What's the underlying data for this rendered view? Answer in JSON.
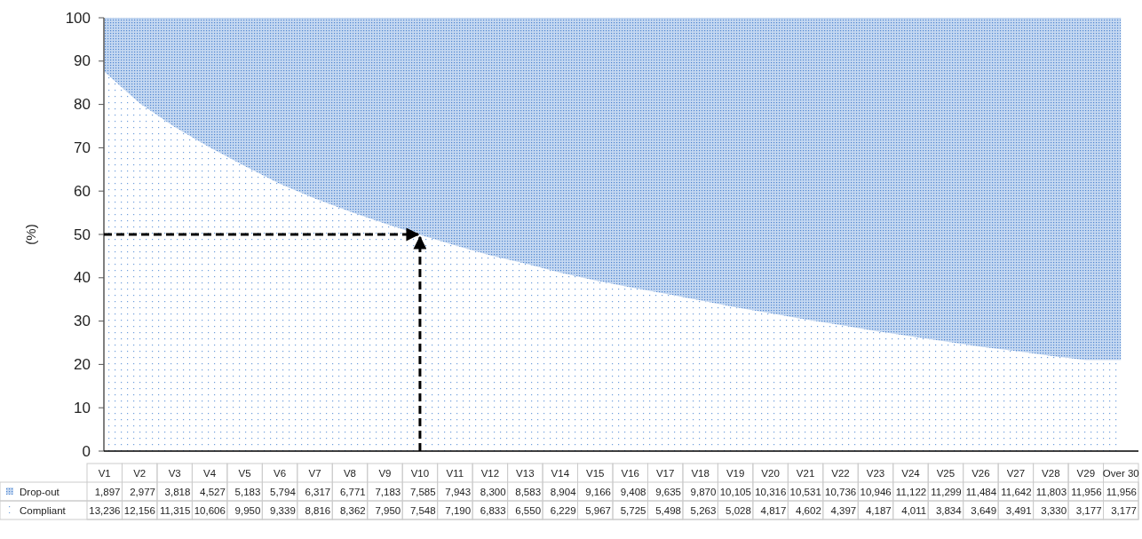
{
  "chart_data": {
    "type": "area",
    "stacked": true,
    "ylabel": "(%)",
    "categories": [
      "V1",
      "V2",
      "V3",
      "V4",
      "V5",
      "V6",
      "V7",
      "V8",
      "V9",
      "V10",
      "V11",
      "V12",
      "V13",
      "V14",
      "V15",
      "V16",
      "V17",
      "V18",
      "V19",
      "V20",
      "V21",
      "V22",
      "V23",
      "V24",
      "V25",
      "V26",
      "V27",
      "V28",
      "V29",
      "Over 30"
    ],
    "series": [
      {
        "name": "Compliant",
        "color": "#6f9fdc",
        "values": [
          87.5,
          80.3,
          74.8,
          70.1,
          65.8,
          61.7,
          58.3,
          55.3,
          52.5,
          49.9,
          47.5,
          45.2,
          43.3,
          41.2,
          39.4,
          37.8,
          36.3,
          34.8,
          33.2,
          31.8,
          30.4,
          29.1,
          27.7,
          26.5,
          25.3,
          24.1,
          23.1,
          22.0,
          21.0,
          21.0
        ]
      },
      {
        "name": "Drop-out",
        "color": "#4f86d0",
        "values": [
          12.5,
          19.7,
          25.2,
          29.9,
          34.2,
          38.3,
          41.7,
          44.7,
          47.5,
          50.1,
          52.5,
          54.8,
          56.7,
          58.8,
          60.6,
          62.2,
          63.7,
          65.2,
          66.8,
          68.2,
          69.6,
          70.9,
          72.3,
          73.5,
          74.7,
          75.9,
          76.9,
          78.0,
          79.0,
          79.0
        ]
      }
    ],
    "annotations": [
      "1,897",
      "2,977",
      "3,818",
      "4,527",
      "5,183",
      "5,794",
      "6,317",
      "6,771",
      "7,183",
      "7,585",
      "7,943",
      "8,300",
      "8,583",
      "8,904",
      "9,166",
      "9,408",
      "9,635",
      "9,870",
      "10,105",
      "10,316",
      "10,531",
      "10,736",
      "10,946",
      "11,122",
      "11,299",
      "11,484",
      "11,642",
      "11,803",
      "11,956",
      "11,956",
      "13,236",
      "12,156",
      "11,315",
      "10,606",
      "9,950",
      "9,339",
      "8,816",
      "8,362",
      "7,950",
      "7,548",
      "7,190",
      "6,833",
      "6,550",
      "6,229",
      "5,967",
      "5,725",
      "5,498",
      "5,263",
      "5,028",
      "4,817",
      "4,602",
      "4,397",
      "4,187",
      "4,011",
      "3,834",
      "3,649",
      "3,491",
      "3,330",
      "3,177",
      "3,177"
    ],
    "ylim": [
      0,
      100
    ],
    "yticks": [
      0,
      10,
      20,
      30,
      40,
      50,
      60,
      70,
      80,
      90,
      100
    ],
    "ref_lines": [
      {
        "axis": "y",
        "value": 50,
        "line_style": "dashed",
        "color": "#000000"
      },
      {
        "axis": "x",
        "value": "V10",
        "line_style": "dashed",
        "color": "#000000"
      }
    ],
    "legend": "bottom left"
  }
}
